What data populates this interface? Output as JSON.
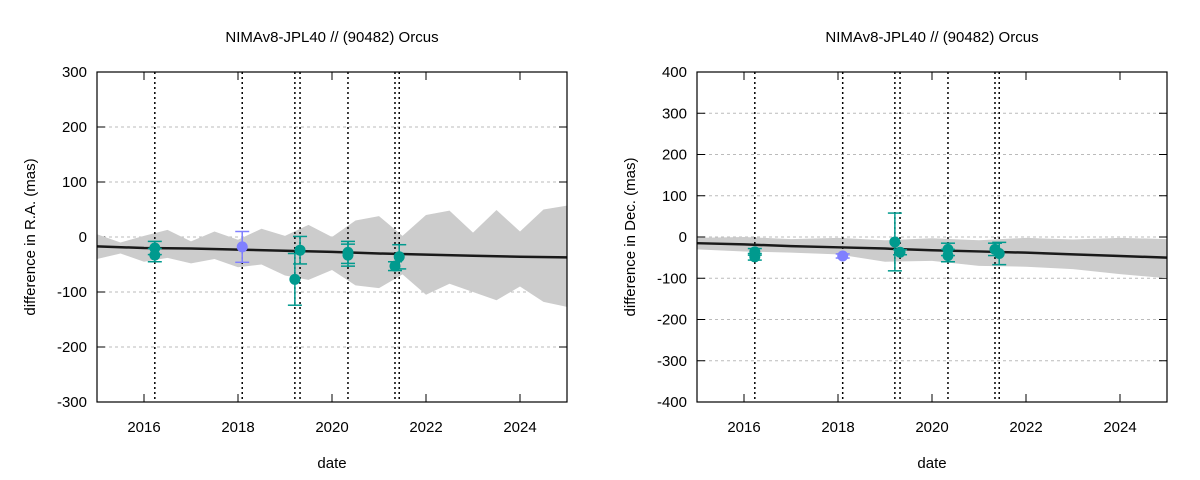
{
  "chart_data": [
    {
      "type": "scatter",
      "title": "NIMAv8-JPL40 // (90482) Orcus",
      "xlabel": "date",
      "ylabel": "difference in R.A. (mas)",
      "xlim": [
        2015,
        2025
      ],
      "ylim": [
        -300,
        300
      ],
      "xticks": [
        2016,
        2018,
        2020,
        2022,
        2024
      ],
      "yticks": [
        -300,
        -200,
        -100,
        0,
        100,
        200,
        300
      ],
      "grid": "horizontal dotted",
      "colors": {
        "points": "#009a8e",
        "highlight": "#8080ff",
        "band": "#cccccc",
        "line": "#1a1a1a"
      },
      "observation_dates": [
        2016.23,
        2018.09,
        2019.21,
        2019.32,
        2020.34,
        2021.34,
        2021.43
      ],
      "nominal": {
        "x": [
          2015,
          2016,
          2017,
          2018,
          2019,
          2020,
          2021,
          2022,
          2023,
          2024,
          2025
        ],
        "y": [
          -17,
          -20,
          -21,
          -23,
          -25,
          -27,
          -30,
          -32,
          -34,
          -36,
          -37
        ]
      },
      "band": {
        "x": [
          2015,
          2015.5,
          2016,
          2016.5,
          2017,
          2017.5,
          2018,
          2018.5,
          2019,
          2019.5,
          2020,
          2020.5,
          2021,
          2021.5,
          2022,
          2022.5,
          2023,
          2023.5,
          2024,
          2024.5,
          2025
        ],
        "upper": [
          5,
          -10,
          2,
          13,
          -8,
          10,
          -5,
          15,
          2,
          22,
          0,
          30,
          38,
          2,
          40,
          48,
          8,
          49,
          10,
          50,
          57
        ],
        "lower": [
          -40,
          -30,
          -45,
          -38,
          -48,
          -40,
          -55,
          -50,
          -70,
          -78,
          -60,
          -88,
          -93,
          -68,
          -105,
          -85,
          -100,
          -115,
          -90,
          -118,
          -127
        ]
      },
      "points": [
        {
          "x": 2016.23,
          "y": -20,
          "err": 12,
          "color": "#009a8e"
        },
        {
          "x": 2016.23,
          "y": -33,
          "err": 12,
          "color": "#009a8e"
        },
        {
          "x": 2018.09,
          "y": -18,
          "err": 28,
          "color": "#8080ff"
        },
        {
          "x": 2019.21,
          "y": -77,
          "err": 47,
          "color": "#009a8e"
        },
        {
          "x": 2019.32,
          "y": -24,
          "err": 25,
          "color": "#009a8e"
        },
        {
          "x": 2020.34,
          "y": -28,
          "err": 20,
          "color": "#009a8e"
        },
        {
          "x": 2020.34,
          "y": -33,
          "err": 20,
          "color": "#009a8e"
        },
        {
          "x": 2021.34,
          "y": -53,
          "err": 8,
          "color": "#009a8e"
        },
        {
          "x": 2021.43,
          "y": -36,
          "err": 22,
          "color": "#009a8e"
        }
      ]
    },
    {
      "type": "scatter",
      "title": "NIMAv8-JPL40 // (90482) Orcus",
      "xlabel": "date",
      "ylabel": "difference in Dec. (mas)",
      "xlim": [
        2015,
        2025
      ],
      "ylim": [
        -400,
        400
      ],
      "xticks": [
        2016,
        2018,
        2020,
        2022,
        2024
      ],
      "yticks": [
        -400,
        -300,
        -200,
        -100,
        0,
        100,
        200,
        300,
        400
      ],
      "grid": "horizontal dotted",
      "colors": {
        "points": "#009a8e",
        "highlight": "#8080ff",
        "band": "#cccccc",
        "line": "#1a1a1a"
      },
      "observation_dates": [
        2016.23,
        2018.1,
        2019.21,
        2019.32,
        2020.34,
        2021.34,
        2021.43
      ],
      "nominal": {
        "x": [
          2015,
          2016,
          2017,
          2018,
          2019,
          2020,
          2021,
          2022,
          2023,
          2024,
          2025
        ],
        "y": [
          -15,
          -18,
          -22,
          -25,
          -28,
          -32,
          -35,
          -38,
          -42,
          -46,
          -50
        ]
      },
      "band": {
        "x": [
          2015,
          2016,
          2017,
          2018,
          2019,
          2020,
          2021,
          2022,
          2023,
          2024,
          2025
        ],
        "upper": [
          -2,
          0,
          -5,
          -2,
          -8,
          -3,
          -8,
          -2,
          -6,
          -2,
          -5
        ],
        "lower": [
          -30,
          -35,
          -38,
          -42,
          -60,
          -58,
          -70,
          -72,
          -78,
          -90,
          -100
        ]
      },
      "points": [
        {
          "x": 2016.23,
          "y": -36,
          "err": 8,
          "color": "#009a8e"
        },
        {
          "x": 2016.23,
          "y": -48,
          "err": 8,
          "color": "#009a8e"
        },
        {
          "x": 2018.1,
          "y": -46,
          "err": 5,
          "color": "#8080ff"
        },
        {
          "x": 2019.21,
          "y": -12,
          "err": 70,
          "color": "#009a8e"
        },
        {
          "x": 2019.32,
          "y": -37,
          "err": 6,
          "color": "#009a8e"
        },
        {
          "x": 2020.34,
          "y": -30,
          "err": 15,
          "color": "#009a8e"
        },
        {
          "x": 2020.34,
          "y": -45,
          "err": 15,
          "color": "#009a8e"
        },
        {
          "x": 2021.34,
          "y": -30,
          "err": 15,
          "color": "#009a8e"
        },
        {
          "x": 2021.43,
          "y": -40,
          "err": 27,
          "color": "#009a8e"
        }
      ]
    }
  ]
}
